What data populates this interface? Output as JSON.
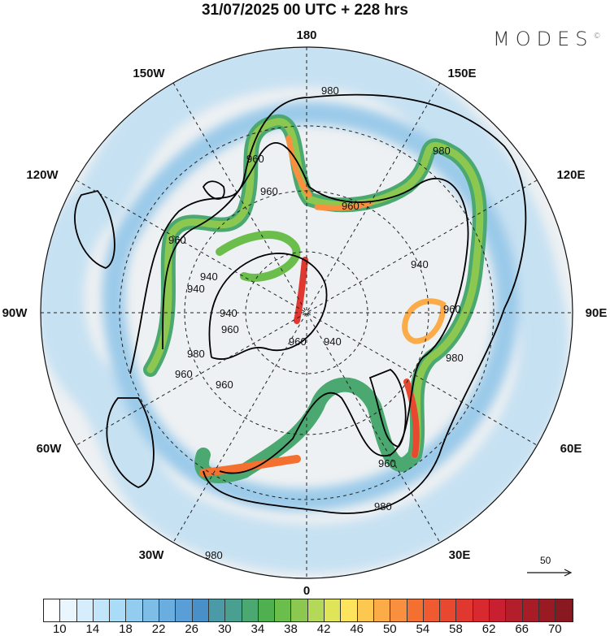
{
  "title": "31/07/2025  00 UTC  + 228 hrs",
  "logo": "MODES",
  "logo_mark": "©",
  "map": {
    "projection": "north polar stereographic",
    "longitude_labels": [
      "180",
      "150E",
      "120E",
      "90E",
      "60E",
      "30E",
      "0",
      "30W",
      "60W",
      "90W",
      "120W",
      "150W"
    ],
    "contour_labels": [
      "980",
      "980",
      "960",
      "960",
      "960",
      "940",
      "960",
      "940",
      "940",
      "960",
      "940",
      "960",
      "960",
      "980",
      "980",
      "980",
      "960",
      "940",
      "960",
      "960",
      "980"
    ],
    "vector_scale_label": "50"
  },
  "colorbar": {
    "colors": [
      "#ffffff",
      "#eaf6fd",
      "#d6eefb",
      "#c2e6f9",
      "#aadcf7",
      "#92cdf0",
      "#7ebde8",
      "#6aaee0",
      "#5a9ed8",
      "#4a90c8",
      "#4a9aa8",
      "#4aa090",
      "#4aa870",
      "#50b050",
      "#6cbe4c",
      "#8cc850",
      "#b4d858",
      "#e0e458",
      "#fde45c",
      "#fcc850",
      "#fbab48",
      "#f89040",
      "#f47030",
      "#f05a30",
      "#e84830",
      "#e03830",
      "#d82830",
      "#c82030",
      "#b41e2a",
      "#a81c28",
      "#9a1a24",
      "#8a1820"
    ],
    "tick_labels": [
      "10",
      "14",
      "18",
      "22",
      "26",
      "30",
      "34",
      "38",
      "42",
      "46",
      "50",
      "54",
      "58",
      "62",
      "66",
      "70"
    ]
  }
}
